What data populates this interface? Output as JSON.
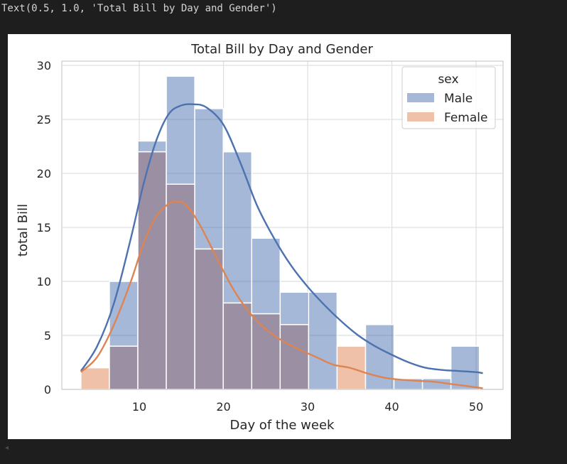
{
  "output": {
    "text": "Text(0.5, 1.0, 'Total Bill by Day and Gender')"
  },
  "scrollbar": {
    "arrow_glyph": "◂"
  },
  "chart_data": {
    "type": "bar",
    "title": "Total Bill by Day and Gender",
    "xlabel": "Day of the week",
    "ylabel": "total Bill",
    "xlim": [
      0.8,
      53.2
    ],
    "ylim": [
      0,
      30.4
    ],
    "xticks": [
      10,
      20,
      30,
      40,
      50
    ],
    "yticks": [
      0,
      5,
      10,
      15,
      20,
      25,
      30
    ],
    "grid": true,
    "bin_edges": [
      3.07,
      6.45,
      9.83,
      13.21,
      16.59,
      19.97,
      23.35,
      26.73,
      30.11,
      33.49,
      36.87,
      40.25,
      43.63,
      47.01,
      50.39
    ],
    "legend": {
      "title": "sex",
      "position": "top-right"
    },
    "series": [
      {
        "name": "Male",
        "color": "#4c72b0",
        "values": [
          0,
          10,
          23,
          29,
          26,
          22,
          14,
          9,
          9,
          0,
          6,
          1,
          1,
          4
        ],
        "kde": {
          "x": [
            3.07,
            5,
            7,
            9,
            10.5,
            12,
            13.5,
            15,
            16.5,
            18,
            20,
            22,
            24,
            26,
            28,
            30,
            32,
            34,
            36,
            38,
            40,
            42,
            44,
            46,
            48,
            50,
            50.8
          ],
          "y": [
            1.7,
            4,
            8,
            14,
            19,
            23,
            25.5,
            26.3,
            26.4,
            26.1,
            24.5,
            21,
            17,
            14,
            11.5,
            9.5,
            7.8,
            6.3,
            5,
            4,
            3.2,
            2.5,
            2,
            1.8,
            1.7,
            1.6,
            1.5
          ]
        }
      },
      {
        "name": "Female",
        "color": "#dd8452",
        "values": [
          2,
          4,
          22,
          19,
          13,
          8,
          7,
          6,
          0,
          4,
          0,
          0,
          0,
          0
        ],
        "kde": {
          "x": [
            3.07,
            5,
            7,
            9,
            10.5,
            12,
            13.5,
            14.5,
            15.5,
            17,
            19,
            21,
            23,
            25,
            27,
            29,
            31,
            33,
            35,
            37,
            39,
            41,
            43,
            45,
            47,
            49,
            50.8
          ],
          "y": [
            1.6,
            3,
            6,
            10,
            13.5,
            16,
            17.2,
            17.4,
            17.1,
            15.5,
            12.5,
            9.5,
            7.2,
            5.6,
            4.5,
            3.7,
            3,
            2.3,
            2,
            1.5,
            1.1,
            0.9,
            0.8,
            0.7,
            0.5,
            0.3,
            0.1
          ]
        }
      }
    ],
    "overlap_color": "#9a8fa3"
  }
}
